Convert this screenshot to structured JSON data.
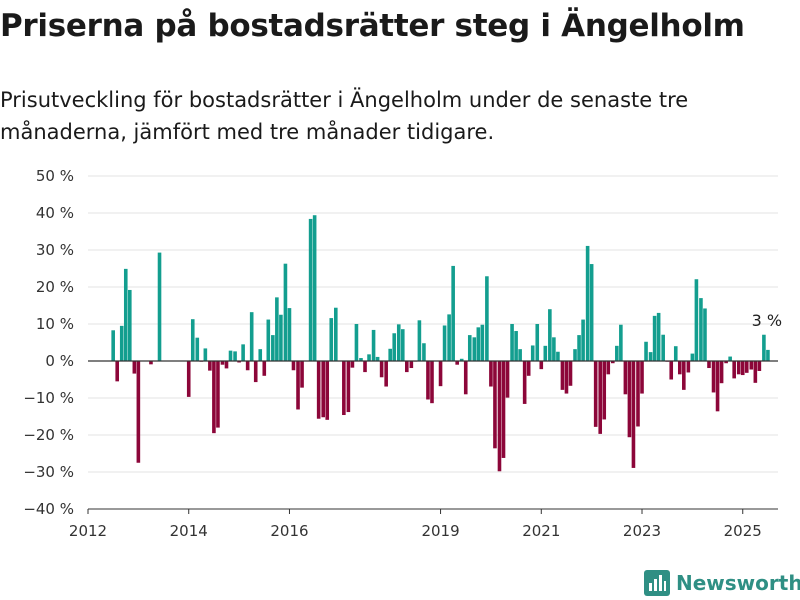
{
  "header": {
    "title": "Priserna på bostadsrätter steg i Ängelholm",
    "subtitle": "Prisutveckling för bostadsrätter i Ängelholm under de senaste tre månaderna, jämfört med tre månader tidigare."
  },
  "brand": {
    "name": "Newsworthy",
    "icon": "bar-chart-logo-icon",
    "color": "#2f8f84"
  },
  "chart_data": {
    "type": "bar",
    "unit": "%",
    "ylim": [
      -40,
      50
    ],
    "yticks": [
      50,
      40,
      30,
      20,
      10,
      0,
      -10,
      -20,
      -30,
      -40
    ],
    "ytick_labels": [
      "50 %",
      "40 %",
      "30 %",
      "20 %",
      "10 %",
      "0 %",
      "−10 %",
      "−20 %",
      "−30 %",
      "−40 %"
    ],
    "xlim": [
      2012.0,
      2025.7
    ],
    "xticks": [
      2012,
      2014,
      2016,
      2019,
      2021,
      2023,
      2025
    ],
    "xtick_labels": [
      "2012",
      "2014",
      "2016",
      "2019",
      "2021",
      "2023",
      "2025"
    ],
    "grid": true,
    "colors": {
      "positive": "#139e8f",
      "negative": "#8c0639",
      "grid": "#e3e3e3",
      "axis": "#333333"
    },
    "annotation": {
      "text": "3 %",
      "x": 2025.42,
      "y": 3
    },
    "x": [
      2012.5,
      2012.58,
      2012.67,
      2012.75,
      2012.83,
      2012.92,
      2013.0,
      2013.25,
      2013.42,
      2014.0,
      2014.08,
      2014.17,
      2014.25,
      2014.33,
      2014.42,
      2014.5,
      2014.58,
      2014.67,
      2014.75,
      2014.83,
      2014.92,
      2015.0,
      2015.08,
      2015.17,
      2015.25,
      2015.33,
      2015.42,
      2015.5,
      2015.58,
      2015.67,
      2015.75,
      2015.83,
      2015.92,
      2016.0,
      2016.08,
      2016.17,
      2016.25,
      2016.42,
      2016.5,
      2016.58,
      2016.67,
      2016.75,
      2016.83,
      2016.92,
      2017.08,
      2017.17,
      2017.25,
      2017.33,
      2017.42,
      2017.5,
      2017.58,
      2017.67,
      2017.75,
      2017.83,
      2017.92,
      2018.0,
      2018.08,
      2018.17,
      2018.25,
      2018.33,
      2018.42,
      2018.5,
      2018.58,
      2018.67,
      2018.75,
      2018.83,
      2019.0,
      2019.08,
      2019.17,
      2019.25,
      2019.33,
      2019.42,
      2019.5,
      2019.58,
      2019.67,
      2019.75,
      2019.83,
      2019.92,
      2020.0,
      2020.08,
      2020.17,
      2020.25,
      2020.33,
      2020.42,
      2020.5,
      2020.58,
      2020.67,
      2020.75,
      2020.83,
      2020.92,
      2021.0,
      2021.08,
      2021.17,
      2021.25,
      2021.33,
      2021.42,
      2021.5,
      2021.58,
      2021.67,
      2021.75,
      2021.83,
      2021.92,
      2022.0,
      2022.08,
      2022.17,
      2022.25,
      2022.33,
      2022.42,
      2022.5,
      2022.58,
      2022.67,
      2022.75,
      2022.83,
      2022.92,
      2023.0,
      2023.08,
      2023.17,
      2023.25,
      2023.33,
      2023.42,
      2023.5,
      2023.58,
      2023.67,
      2023.75,
      2023.83,
      2023.92,
      2024.0,
      2024.08,
      2024.17,
      2024.25,
      2024.33,
      2024.42,
      2024.5,
      2024.58,
      2024.67,
      2024.75,
      2024.83,
      2024.92,
      2025.0,
      2025.08,
      2025.17,
      2025.25,
      2025.33,
      2025.42,
      2025.5
    ],
    "values": [
      8.3,
      -5.5,
      9.5,
      24.9,
      19.2,
      -3.4,
      -27.5,
      -0.9,
      29.3,
      -9.7,
      11.3,
      6.3,
      -0.2,
      3.4,
      -2.6,
      -19.5,
      -18.0,
      -1.0,
      -2.0,
      2.8,
      2.6,
      -0.4,
      4.5,
      -2.5,
      13.2,
      -5.7,
      3.2,
      -4.0,
      11.2,
      7.0,
      17.2,
      12.5,
      26.3,
      14.3,
      -2.5,
      -13.1,
      -7.2,
      38.4,
      39.4,
      -15.6,
      -15.2,
      -15.9,
      11.6,
      14.4,
      -14.6,
      -13.8,
      -1.8,
      10.0,
      0.8,
      -3.0,
      1.8,
      8.4,
      1.1,
      -4.4,
      -6.9,
      3.3,
      7.5,
      9.9,
      8.6,
      -3.0,
      -1.9,
      -0.1,
      11.0,
      4.8,
      -10.4,
      -11.4,
      -6.8,
      9.6,
      12.6,
      25.7,
      -1.0,
      0.6,
      -9.0,
      7.0,
      6.4,
      9.1,
      9.8,
      22.9,
      -6.9,
      -23.6,
      -29.8,
      -26.2,
      -9.9,
      10.0,
      8.1,
      3.2,
      -11.6,
      -4.0,
      4.2,
      10.0,
      -2.2,
      4.1,
      14.0,
      6.4,
      2.5,
      -7.8,
      -8.8,
      -6.7,
      3.2,
      7.0,
      11.2,
      31.1,
      26.2,
      -17.8,
      -19.7,
      -15.8,
      -3.6,
      -0.6,
      4.1,
      9.8,
      -9.0,
      -20.6,
      -28.9,
      -17.7,
      -8.8,
      5.2,
      2.4,
      12.2,
      13.0,
      7.1,
      -0.2,
      -5.0,
      4.0,
      -3.6,
      -7.8,
      -3.1,
      2.0,
      22.1,
      17.0,
      14.2,
      -1.9,
      -8.5,
      -13.6,
      -6.0,
      -0.6,
      1.2,
      -4.7,
      -3.6,
      -3.8,
      -3.2,
      -2.3,
      -5.9,
      -2.7,
      7.1,
      3.0
    ]
  }
}
